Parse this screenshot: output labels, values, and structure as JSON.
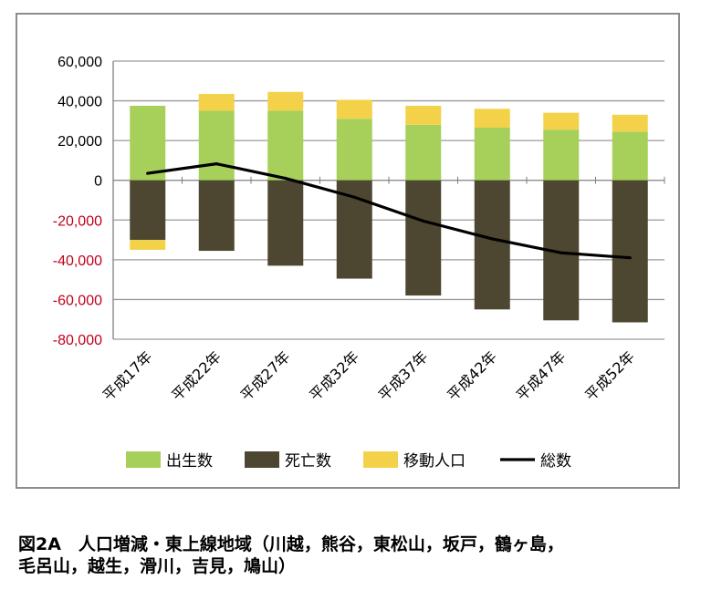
{
  "chart_data": {
    "type": "bar",
    "stacked": true,
    "categories": [
      "平成17年",
      "平成22年",
      "平成27年",
      "平成32年",
      "平成37年",
      "平成42年",
      "平成47年",
      "平成52年"
    ],
    "series": [
      {
        "name": "出生数",
        "kind": "bar",
        "color": "#a6d05a",
        "values": [
          37500,
          35000,
          35000,
          31000,
          28000,
          26500,
          25500,
          24500
        ]
      },
      {
        "name": "死亡数",
        "kind": "bar",
        "color": "#4d4731",
        "values": [
          -30000,
          -35500,
          -43000,
          -49500,
          -58000,
          -65000,
          -70500,
          -71500
        ]
      },
      {
        "name": "移動人口",
        "kind": "bar",
        "color": "#f3d24a",
        "values": [
          -5000,
          8500,
          9500,
          9500,
          9500,
          9500,
          8500,
          8500
        ]
      },
      {
        "name": "総数",
        "kind": "line",
        "color": "#000000",
        "values": [
          3500,
          8300,
          1000,
          -8500,
          -20500,
          -29500,
          -36500,
          -39000
        ]
      }
    ],
    "y_ticks": [
      "60,000",
      "40,000",
      "20,000",
      "0",
      "-20,000",
      "-40,000",
      "-60,000",
      "-80,000"
    ],
    "ylim": [
      -80000,
      60000
    ],
    "grid": true,
    "legend_position": "bottom",
    "negative_tick_color": "#c0001a"
  },
  "caption": {
    "line1": "図2A　人口増減・東上線地域（川越，熊谷，東松山，坂戸，鶴ヶ島，",
    "line2": "毛呂山，越生，滑川，吉見，鳩山）"
  }
}
